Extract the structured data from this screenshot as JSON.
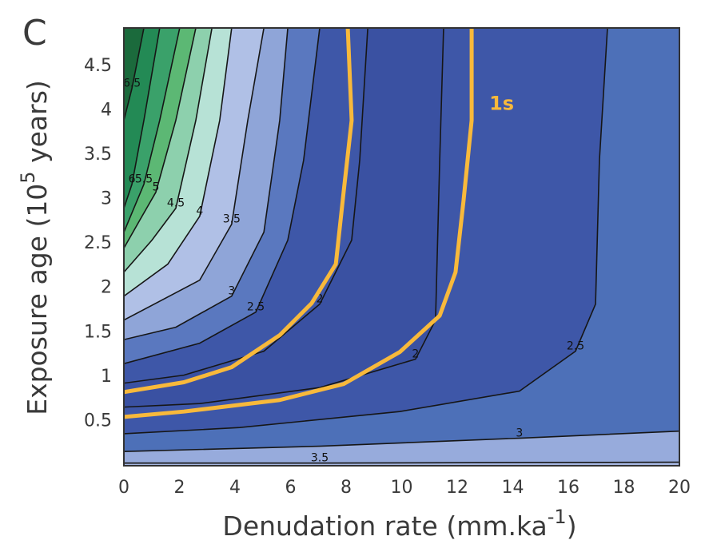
{
  "chart_data": {
    "type": "contour",
    "panel_label": "C",
    "x_label": [
      "Denudation rate (mm.ka",
      "-1",
      ")"
    ],
    "y_label": [
      "Exposure age (10",
      "5",
      " years)"
    ],
    "xlim": [
      0,
      20
    ],
    "ylim": [
      0,
      4.93
    ],
    "xticks": [
      0,
      2,
      4,
      6,
      8,
      10,
      12,
      14,
      16,
      18,
      20
    ],
    "yticks": [
      0.5,
      1,
      1.5,
      2,
      2.5,
      3,
      3.5,
      4,
      4.5
    ],
    "grid": false,
    "base_color": "#3a51a2",
    "contours": [
      {
        "level": 2,
        "side": "lower-right",
        "color": "#3e57a8",
        "x": [
          0,
          2.73,
          7.05,
          10.5,
          11.22,
          11.37,
          11.51
        ],
        "y": [
          0.66,
          0.7,
          0.88,
          1.2,
          1.64,
          3.44,
          4.93
        ]
      },
      {
        "level": 2.5,
        "side": "lower-right",
        "color": "#4d70b8",
        "x": [
          0,
          4.17,
          9.93,
          14.24,
          16.26,
          16.98,
          17.12,
          17.41
        ],
        "y": [
          0.36,
          0.43,
          0.61,
          0.84,
          1.29,
          1.82,
          3.44,
          4.93
        ]
      },
      {
        "level": 3,
        "side": "lower-right",
        "color": "#97abdc",
        "x": [
          0,
          7.05,
          14.24,
          20
        ],
        "y": [
          0.16,
          0.22,
          0.31,
          0.39
        ]
      },
      {
        "level": 3.5,
        "side": "lower-right",
        "color": "#a6b7e2",
        "x": [
          0,
          7.05,
          20
        ],
        "y": [
          0.03,
          0.03,
          0.04
        ]
      },
      {
        "level": 2,
        "side": "upper-left",
        "color": "#3e57a8",
        "x": [
          8.78,
          8.49,
          8.2,
          7.05,
          5.04,
          2.16,
          0
        ],
        "y": [
          4.93,
          3.44,
          2.54,
          1.82,
          1.29,
          1.02,
          0.93
        ]
      },
      {
        "level": 2.5,
        "side": "upper-left",
        "color": "#5a78bf",
        "x": [
          7.05,
          6.47,
          5.9,
          4.75,
          2.73,
          0
        ],
        "y": [
          4.93,
          3.44,
          2.54,
          1.73,
          1.38,
          1.15
        ]
      },
      {
        "level": 3,
        "side": "upper-left",
        "color": "#8fa5d8",
        "x": [
          5.9,
          5.61,
          5.04,
          3.88,
          1.87,
          0
        ],
        "y": [
          4.93,
          3.89,
          2.63,
          1.91,
          1.56,
          1.42
        ]
      },
      {
        "level": 3.5,
        "side": "upper-left",
        "color": "#b0c0e6",
        "x": [
          5.04,
          4.46,
          3.88,
          2.73,
          0
        ],
        "y": [
          4.93,
          3.89,
          2.72,
          2.09,
          1.64
        ]
      },
      {
        "level": 4,
        "side": "upper-left",
        "color": "#b7e2d6",
        "x": [
          3.88,
          3.45,
          2.73,
          1.58,
          0
        ],
        "y": [
          4.93,
          3.89,
          2.81,
          2.27,
          1.91
        ]
      },
      {
        "level": 4.5,
        "side": "upper-left",
        "color": "#8dd0ad",
        "x": [
          3.17,
          2.59,
          1.87,
          1.01,
          0
        ],
        "y": [
          4.93,
          3.89,
          2.9,
          2.54,
          2.18
        ]
      },
      {
        "level": 5,
        "side": "upper-left",
        "color": "#5cb874",
        "x": [
          2.59,
          1.87,
          1.15,
          0.58,
          0
        ],
        "y": [
          4.93,
          3.89,
          3.08,
          2.77,
          2.45
        ]
      },
      {
        "level": 5.5,
        "side": "upper-left",
        "color": "#3aa16a",
        "x": [
          2.01,
          1.29,
          0.72,
          0
        ],
        "y": [
          4.93,
          3.89,
          3.17,
          2.63
        ]
      },
      {
        "level": 6,
        "side": "upper-left",
        "color": "#238a55",
        "x": [
          1.29,
          0.72,
          0.29,
          0
        ],
        "y": [
          4.93,
          3.89,
          3.17,
          2.9
        ]
      },
      {
        "level": 6.5,
        "side": "upper-left",
        "color": "#1b6a3c",
        "x": [
          0.72,
          0.29,
          0
        ],
        "y": [
          4.93,
          4.25,
          3.89
        ]
      }
    ],
    "series": [
      {
        "name": "1s",
        "color": "#f8b93b",
        "x": [
          0,
          2.16,
          3.88,
          5.61,
          6.76,
          7.63,
          7.91,
          8.2,
          8.06
        ],
        "y": [
          0.83,
          0.94,
          1.11,
          1.47,
          1.83,
          2.27,
          3.08,
          3.89,
          4.93
        ]
      },
      {
        "name": "1s",
        "color": "#f8b93b",
        "x": [
          0,
          2.16,
          5.61,
          7.91,
          9.93,
          11.37,
          11.94,
          12.23,
          12.52,
          12.52
        ],
        "y": [
          0.55,
          0.61,
          0.74,
          0.92,
          1.28,
          1.69,
          2.18,
          2.99,
          3.89,
          4.93
        ]
      }
    ]
  }
}
